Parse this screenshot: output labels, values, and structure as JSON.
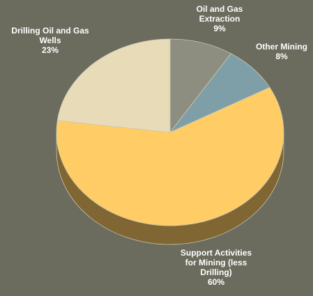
{
  "chart_data": {
    "type": "pie",
    "title": "",
    "slices": [
      {
        "label_lines": [
          "Oil and Gas",
          "Extraction"
        ],
        "value": 9,
        "value_text": "9%",
        "color": "#8e8e80"
      },
      {
        "label_lines": [
          "Other Mining"
        ],
        "value": 8,
        "value_text": "8%",
        "color": "#7f9fa8"
      },
      {
        "label_lines": [
          "Support Activities",
          "for Mining (less",
          "Drilling)"
        ],
        "value": 60,
        "value_text": "60%",
        "color": "#ffcc66"
      },
      {
        "label_lines": [
          "Drilling Oil and Gas",
          "Wells"
        ],
        "value": 23,
        "value_text": "23%",
        "color": "#e8dcb8"
      }
    ],
    "style": "3d-pie",
    "background": "#6b6b5e",
    "edge_color": "#c8c8b0"
  }
}
